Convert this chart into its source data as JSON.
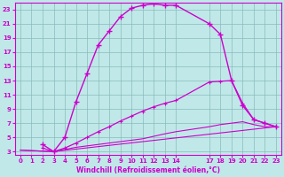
{
  "xlabel": "Windchill (Refroidissement éolien,°C)",
  "ylabel": "",
  "background_color": "#c0e8e8",
  "plot_bg_color": "#c0e8e8",
  "line_color": "#cc00cc",
  "grid_color": "#99cccc",
  "xlim": [
    -0.5,
    23.5
  ],
  "ylim": [
    2.5,
    24.0
  ],
  "xticks": [
    0,
    1,
    2,
    3,
    4,
    5,
    6,
    7,
    8,
    9,
    10,
    11,
    12,
    13,
    14,
    17,
    18,
    19,
    20,
    21,
    22,
    23
  ],
  "yticks": [
    3,
    5,
    7,
    9,
    11,
    13,
    15,
    17,
    19,
    21,
    23
  ],
  "line1_x": [
    2,
    3,
    4,
    5,
    6,
    7,
    8,
    9,
    10,
    11,
    12,
    13,
    14,
    17,
    18,
    19,
    20,
    21,
    22,
    23
  ],
  "line1_y": [
    4.0,
    3.0,
    5.0,
    10.0,
    14.0,
    18.0,
    20.0,
    22.0,
    23.2,
    23.6,
    23.8,
    23.6,
    23.6,
    21.0,
    19.5,
    13.0,
    9.5,
    7.5,
    7.0,
    6.5
  ],
  "line2_x": [
    2,
    3,
    4,
    5,
    6,
    7,
    8,
    9,
    10,
    11,
    12,
    13,
    14,
    17,
    18,
    19,
    20,
    21,
    22,
    23
  ],
  "line2_y": [
    3.5,
    3.0,
    3.5,
    4.2,
    5.0,
    5.8,
    6.5,
    7.3,
    8.0,
    8.7,
    9.3,
    9.8,
    10.2,
    12.8,
    12.9,
    13.0,
    9.8,
    7.5,
    7.0,
    6.5
  ],
  "line3_x": [
    0,
    3,
    23
  ],
  "line3_y": [
    3.2,
    3.0,
    6.5
  ],
  "line4_x": [
    0,
    3,
    5,
    7,
    9,
    11,
    13,
    14,
    17,
    18,
    19,
    20,
    21,
    22,
    23
  ],
  "line4_y": [
    3.2,
    3.0,
    3.6,
    4.0,
    4.4,
    4.8,
    5.5,
    5.8,
    6.5,
    6.8,
    7.0,
    7.2,
    6.8,
    6.5,
    6.5
  ]
}
